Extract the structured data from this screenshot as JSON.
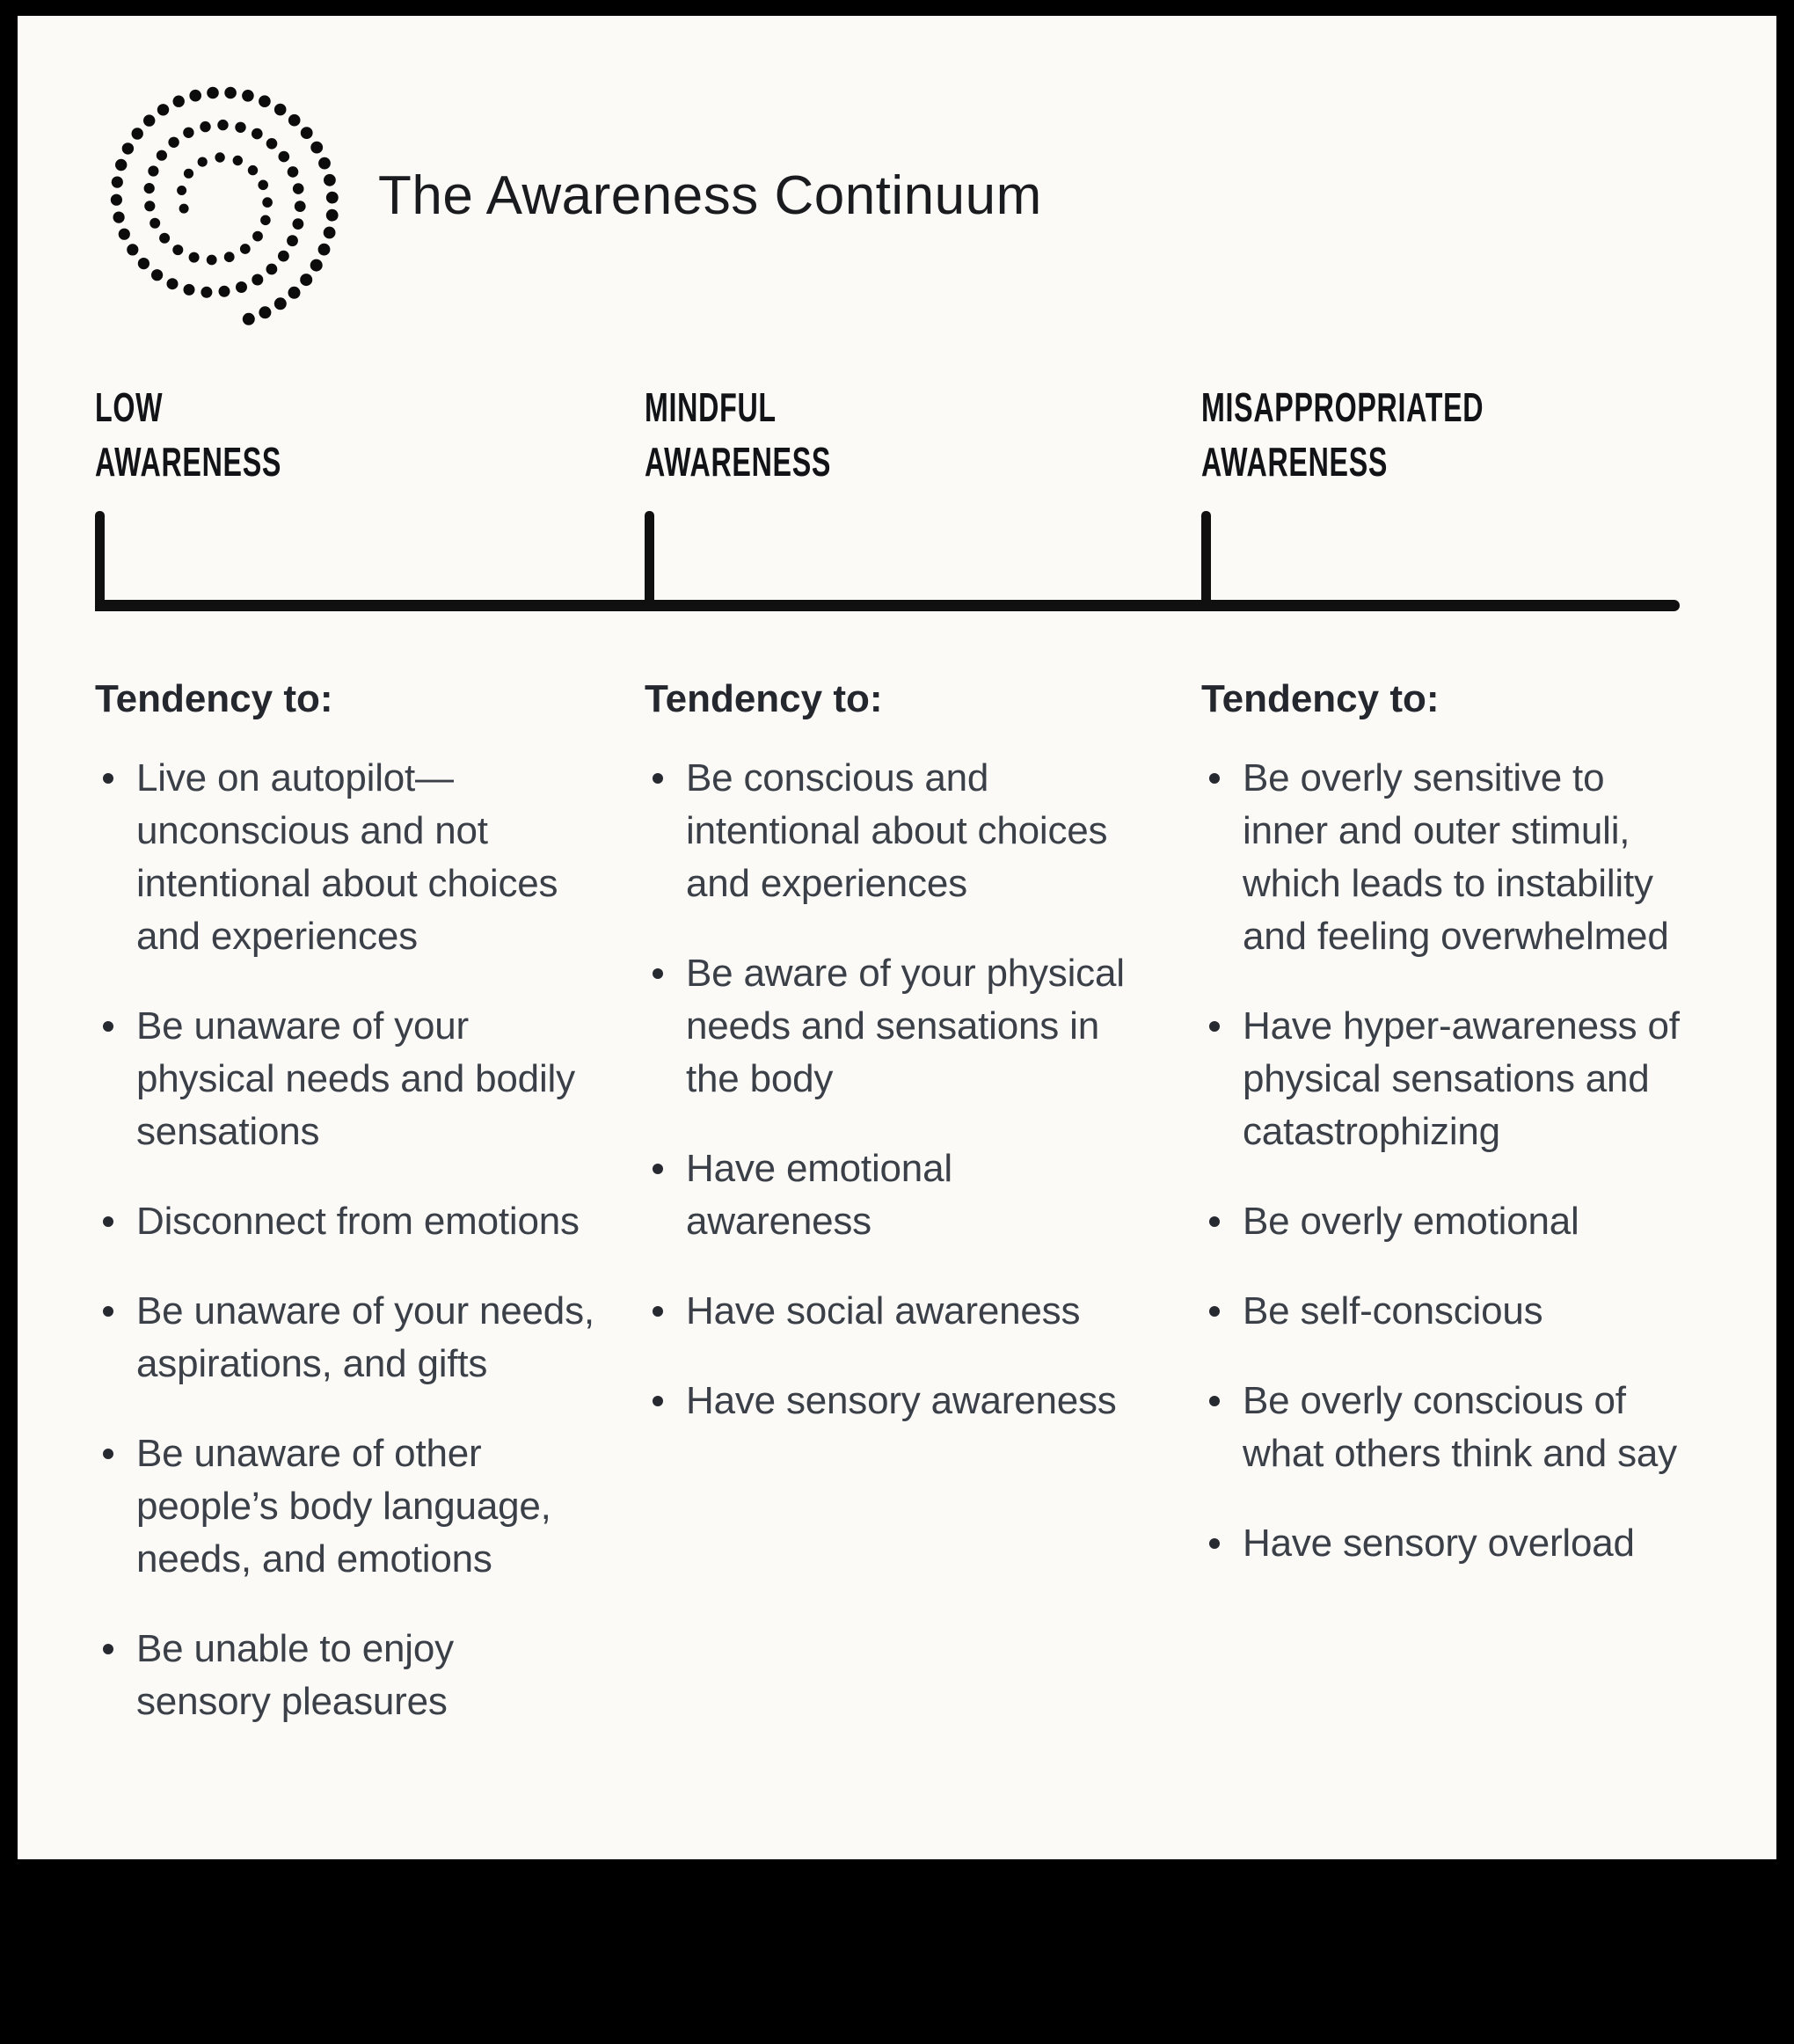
{
  "title": "The Awareness Continuum",
  "colors": {
    "frame": "#000000",
    "background": "#fbfaf7",
    "heading_text": "#121317",
    "body_text": "#3b4048",
    "axis": "#101010"
  },
  "continuum": {
    "columns": [
      {
        "label_line_1": "LOW",
        "label_line_2": "AWARENESS",
        "tendency_label": "Tendency to:",
        "items": [
          "Live on autopilot—unconscious and not intentional about choices and experiences",
          "Be unaware of your physical needs and bodily sensations",
          "Disconnect from emotions",
          "Be unaware of your needs, aspirations, and gifts",
          "Be unaware of other people’s body language, needs, and emotions",
          "Be unable to enjoy sensory pleasures"
        ]
      },
      {
        "label_line_1": "MINDFUL",
        "label_line_2": "AWARENESS",
        "tendency_label": "Tendency to:",
        "items": [
          "Be conscious and intentional about choices and experiences",
          "Be aware of your physical needs and sensations in the body",
          "Have emotional awareness",
          "Have social awareness",
          "Have sensory awareness"
        ]
      },
      {
        "label_line_1": "MISAPPROPRIATED",
        "label_line_2": "AWARENESS",
        "tendency_label": "Tendency to:",
        "items": [
          "Be overly sensitive to inner and outer stimuli, which leads to instability and feeling overwhelmed",
          "Have hyper-awareness of physical sensations and catastrophizing",
          "Be overly emotional",
          "Be self-conscious",
          "Be overly conscious of what others think and say",
          "Have sensory overload"
        ]
      }
    ]
  }
}
